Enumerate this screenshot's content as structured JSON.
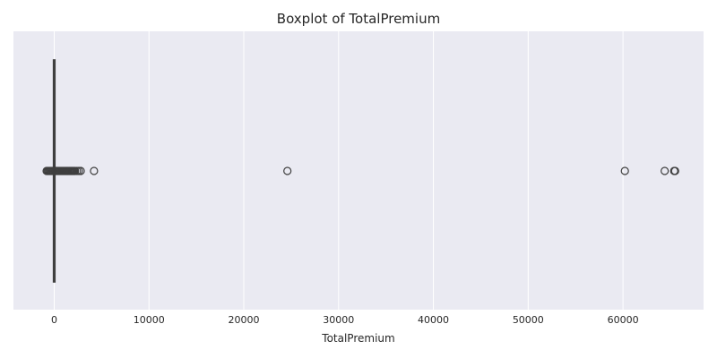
{
  "chart_data": {
    "type": "boxplot",
    "title": "Boxplot of TotalPremium",
    "xlabel": "TotalPremium",
    "ylabel": "",
    "xlim": [
      -4300,
      68500
    ],
    "xticks": [
      0,
      10000,
      20000,
      30000,
      40000,
      50000,
      60000
    ],
    "tick_labels": [
      "0",
      "10000",
      "20000",
      "30000",
      "40000",
      "50000",
      "60000"
    ],
    "grid": true,
    "box": {
      "q1": 0,
      "median": 0,
      "q3": 0,
      "whisker_low": 0,
      "whisker_high": 0
    },
    "outliers": [
      -800,
      -700,
      -600,
      -500,
      -400,
      -300,
      -200,
      -100,
      100,
      200,
      300,
      400,
      500,
      600,
      700,
      800,
      900,
      1000,
      1100,
      1200,
      1300,
      1400,
      1500,
      1600,
      1700,
      1800,
      1900,
      2000,
      2100,
      2200,
      2400,
      2600,
      2800,
      4200,
      24600,
      60200,
      64400,
      65400,
      65500
    ],
    "colors": {
      "background": "#eaeaf2",
      "grid": "#ffffff",
      "box": "#3f3f3f"
    }
  }
}
